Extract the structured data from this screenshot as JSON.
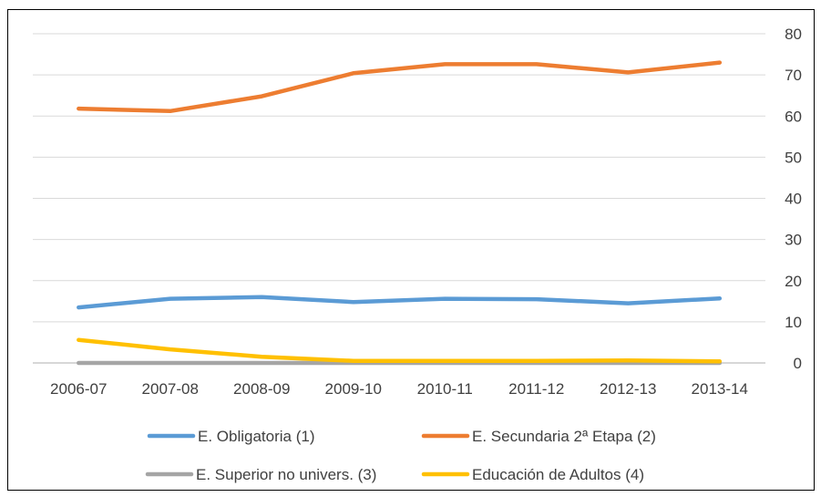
{
  "chart_data": {
    "type": "line",
    "title": "",
    "xlabel": "",
    "ylabel": "",
    "categories": [
      "2006-07",
      "2007-08",
      "2008-09",
      "2009-10",
      "2010-11",
      "2011-12",
      "2012-13",
      "2013-14"
    ],
    "ylim": [
      0,
      80
    ],
    "yticks": [
      0,
      10,
      20,
      30,
      40,
      50,
      60,
      70,
      80
    ],
    "y_axis_side": "right",
    "grid": true,
    "legend_position": "bottom",
    "series": [
      {
        "name": "E. Obligatoria (1)",
        "color": "#5B9BD5",
        "values": [
          13.5,
          15.6,
          16.0,
          14.8,
          15.6,
          15.5,
          14.5,
          15.7
        ]
      },
      {
        "name": "E. Secundaria 2ª Etapa (2)",
        "color": "#ED7D31",
        "values": [
          61.8,
          61.2,
          64.8,
          70.4,
          72.6,
          72.6,
          70.6,
          73.0
        ]
      },
      {
        "name": "E. Superior no univers. (3)",
        "color": "#A5A5A5",
        "values": [
          0.0,
          0.0,
          0.0,
          0.0,
          0.0,
          0.0,
          0.0,
          0.0
        ]
      },
      {
        "name": "Educación de Adultos (4)",
        "color": "#FFC000",
        "values": [
          5.6,
          3.3,
          1.5,
          0.5,
          0.5,
          0.5,
          0.6,
          0.4
        ]
      }
    ]
  }
}
